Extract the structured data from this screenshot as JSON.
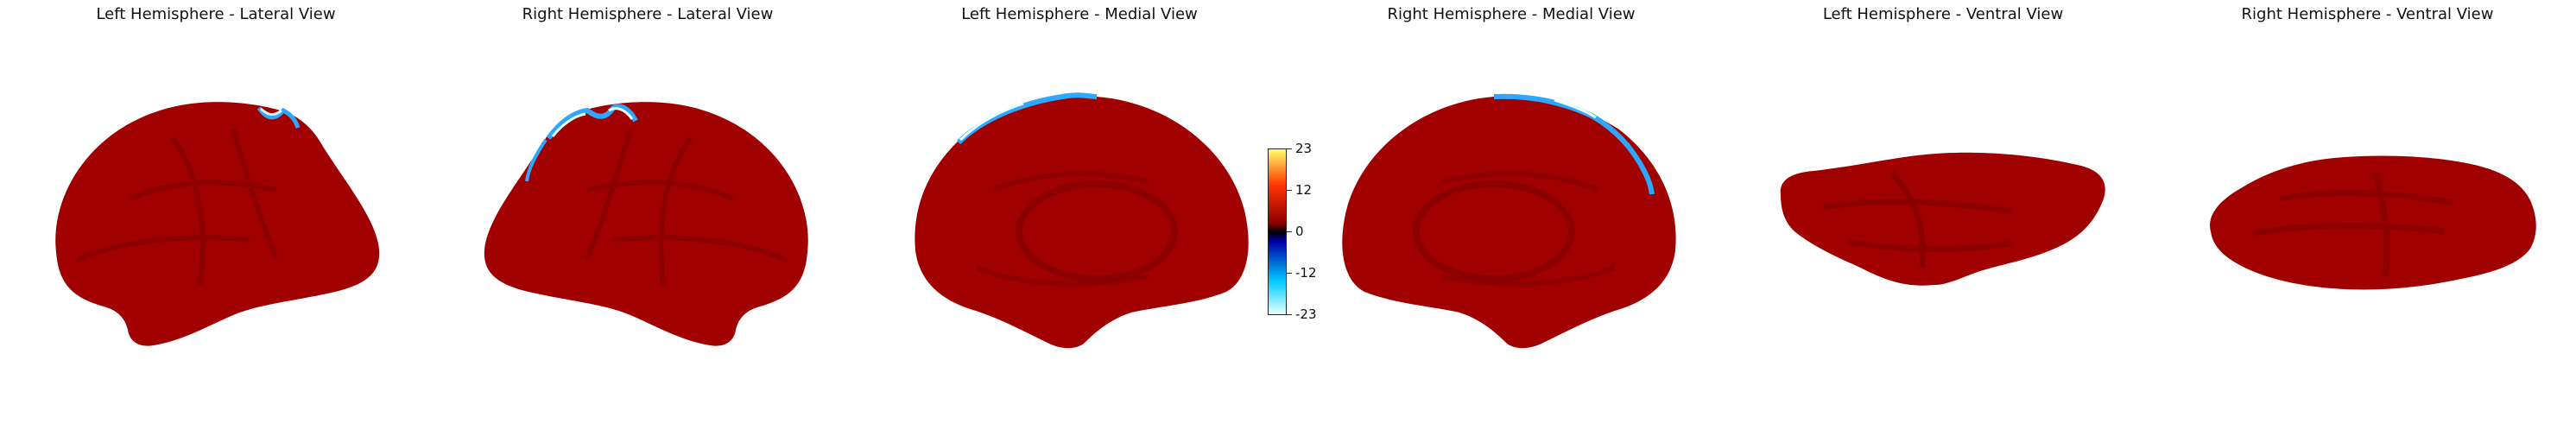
{
  "panels": [
    {
      "id": "lh-lateral",
      "title": "Left Hemisphere - Lateral View"
    },
    {
      "id": "rh-lateral",
      "title": "Right Hemisphere - Lateral View"
    },
    {
      "id": "lh-medial",
      "title": "Left Hemisphere - Medial View"
    },
    {
      "id": "rh-medial",
      "title": "Right Hemisphere - Medial View"
    },
    {
      "id": "lh-ventral",
      "title": "Left Hemisphere - Ventral View"
    },
    {
      "id": "rh-ventral",
      "title": "Right Hemisphere - Ventral View"
    }
  ],
  "colorbar": {
    "ticks": [
      "23",
      "12",
      "0",
      "-12",
      "-23"
    ],
    "colormap": "cold_hot",
    "stops": [
      "#ffff66",
      "#ff3300",
      "#8a0000",
      "#000000",
      "#0000aa",
      "#00ccff",
      "#e6ffff"
    ]
  },
  "colors": {
    "surface": "#a00000",
    "surface_shade": "#7a0000",
    "edge_cold": "#2ea8ff",
    "edge_light": "#d9f7ff"
  }
}
